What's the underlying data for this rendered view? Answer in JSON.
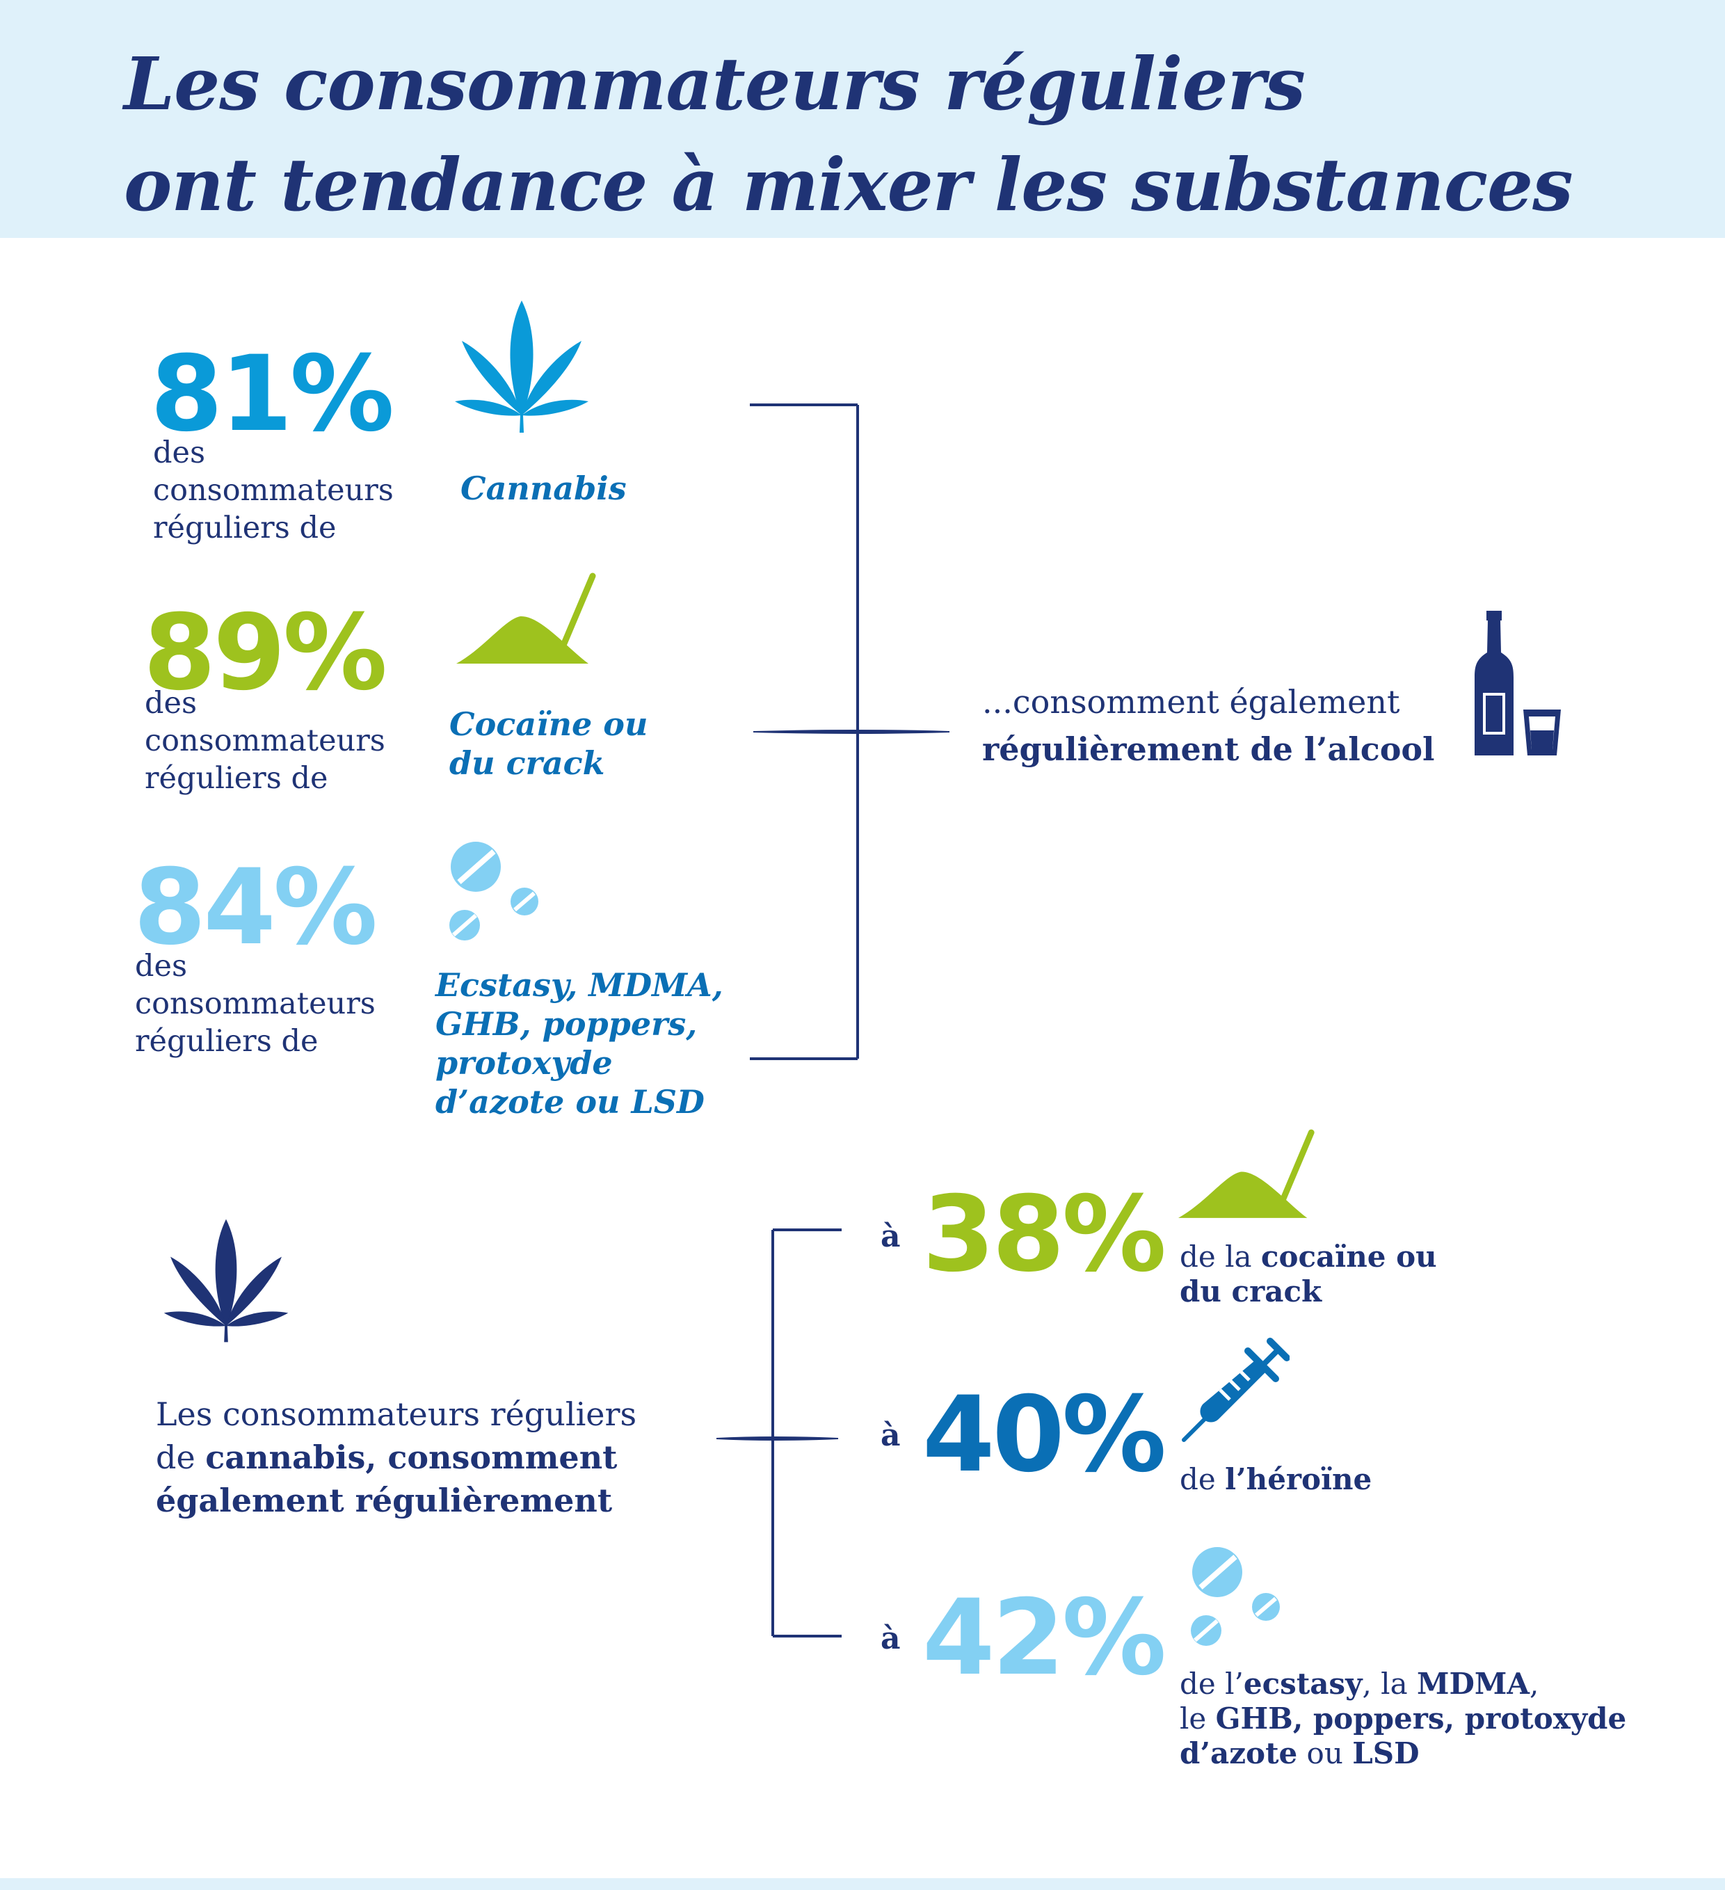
{
  "title": {
    "line1": "Les consommateurs réguliers",
    "line2": "ont tendance à mixer les substances"
  },
  "top_section": {
    "items": [
      {
        "percent": "81%",
        "desc": [
          "des",
          "consommateurs",
          "réguliers de"
        ],
        "substance": [
          "Cannabis"
        ],
        "icon": "cannabis-leaf-icon",
        "color": "#0a9ad8"
      },
      {
        "percent": "89%",
        "desc": [
          "des",
          "consommateurs",
          "réguliers de"
        ],
        "substance": [
          "Cocaïne ou",
          "du crack"
        ],
        "icon": "powder-line-icon",
        "color": "#9ec21e"
      },
      {
        "percent": "84%",
        "desc": [
          "des",
          "consommateurs",
          "réguliers de"
        ],
        "substance": [
          "Ecstasy, MDMA,",
          "GHB, poppers,",
          "protoxyde",
          "d’azote ou LSD"
        ],
        "icon": "pills-icon",
        "color": "#83d0f3"
      }
    ],
    "result": {
      "line1": "...consomment également",
      "line2": "régulièrement de l’alcool",
      "icon": "bottle-glass-icon"
    }
  },
  "bottom_section": {
    "text": {
      "line1": "Les consommateurs réguliers",
      "line2_plain": "de ",
      "line2_bold": "cannabis, consomment",
      "line3_bold": "également régulièrement"
    },
    "icon": "cannabis-leaf-icon",
    "items": [
      {
        "prefix": "à",
        "percent": "38%",
        "color": "#9ec21e",
        "icon": "powder-line-icon",
        "line1_plain": "de la ",
        "line1_bold": "cocaïne ou",
        "line2_bold": "du crack"
      },
      {
        "prefix": "à",
        "percent": "40%",
        "color": "#0a6fb5",
        "icon": "syringe-icon",
        "line1_plain": "de ",
        "line1_bold": "l’héroïne"
      },
      {
        "prefix": "à",
        "percent": "42%",
        "color": "#83d0f3",
        "icon": "pills-icon",
        "line1_a": "de l’",
        "line1_b": "ecstasy",
        "line1_c": ", la ",
        "line1_d": "MDMA",
        "line1_e": ",",
        "line2_a": "le ",
        "line2_b": "GHB, poppers, protoxyde",
        "line3_a": "d’azote",
        "line3_b": " ou ",
        "line3_c": "LSD"
      }
    ]
  },
  "colors": {
    "navy": "#1f3375",
    "header_bg": "#dff1fa",
    "cyan": "#0a9ad8",
    "green": "#9ec21e",
    "light_blue": "#83d0f3",
    "mid_blue": "#0a6fb5"
  }
}
